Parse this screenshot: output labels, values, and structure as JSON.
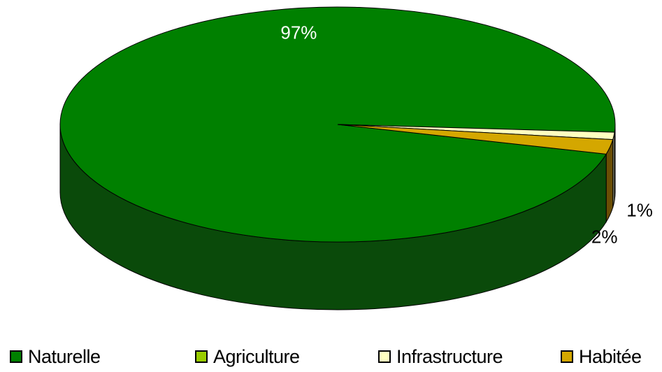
{
  "chart_data": {
    "type": "pie",
    "style": "3d",
    "categories": [
      "Naturelle",
      "Agriculture",
      "Infrastructure",
      "Habitée"
    ],
    "values": [
      97,
      0,
      1,
      2
    ],
    "data_labels": [
      "97%",
      "",
      "1%",
      "2%"
    ],
    "colors": [
      "#008000",
      "#99cc00",
      "#ffffc0",
      "#d4a700"
    ],
    "side_colors": [
      "#0a4a0a",
      "#4f6a00",
      "#8a8a70",
      "#6b4e05"
    ],
    "legend_position": "bottom",
    "title": ""
  }
}
